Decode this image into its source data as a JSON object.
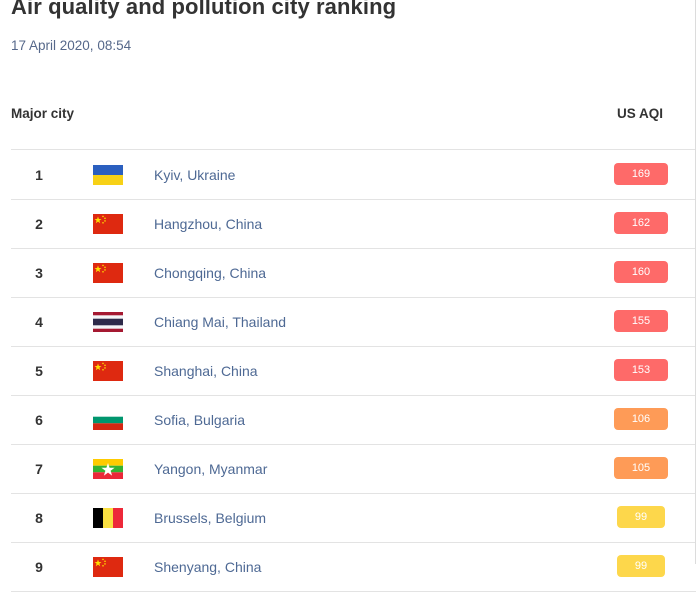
{
  "page": {
    "title": "Air quality and pollution city ranking",
    "timestamp": "17 April 2020, 08:54"
  },
  "table": {
    "headers": {
      "city": "Major city",
      "aqi": "US AQI"
    },
    "rows": [
      {
        "rank": "1",
        "city": "Kyiv, Ukraine",
        "flag": "ukraine-flag-icon",
        "aqi": "169",
        "aqi_color": "#fe6a69"
      },
      {
        "rank": "2",
        "city": "Hangzhou, China",
        "flag": "china-flag-icon",
        "aqi": "162",
        "aqi_color": "#fe6a69"
      },
      {
        "rank": "3",
        "city": "Chongqing, China",
        "flag": "china-flag-icon",
        "aqi": "160",
        "aqi_color": "#fe6a69"
      },
      {
        "rank": "4",
        "city": "Chiang Mai, Thailand",
        "flag": "thailand-flag-icon",
        "aqi": "155",
        "aqi_color": "#fe6a69"
      },
      {
        "rank": "5",
        "city": "Shanghai, China",
        "flag": "china-flag-icon",
        "aqi": "153",
        "aqi_color": "#fe6a69"
      },
      {
        "rank": "6",
        "city": "Sofia, Bulgaria",
        "flag": "bulgaria-flag-icon",
        "aqi": "106",
        "aqi_color": "#fe9b57"
      },
      {
        "rank": "7",
        "city": "Yangon, Myanmar",
        "flag": "myanmar-flag-icon",
        "aqi": "105",
        "aqi_color": "#fe9b57"
      },
      {
        "rank": "8",
        "city": "Brussels, Belgium",
        "flag": "belgium-flag-icon",
        "aqi": "99",
        "aqi_color": "#fdd74b"
      },
      {
        "rank": "9",
        "city": "Shenyang, China",
        "flag": "china-flag-icon",
        "aqi": "99",
        "aqi_color": "#fdd74b"
      }
    ]
  },
  "colors": {
    "unhealthy": "#fe6a69",
    "sensitive": "#fe9b57",
    "moderate": "#fdd74b",
    "link": "#4e6994"
  }
}
